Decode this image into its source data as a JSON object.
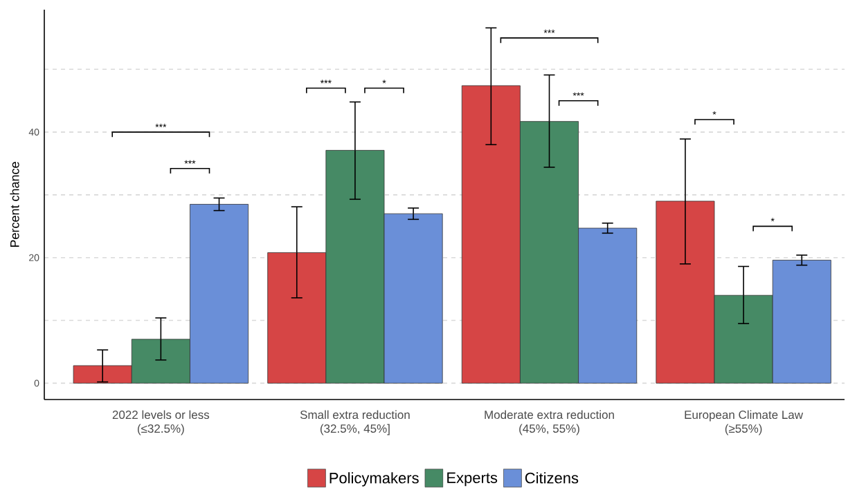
{
  "chart_data": {
    "type": "bar",
    "ylabel": "Percent chance",
    "categories": [
      "2022 levels or less\n(≤32.5%)",
      "Small extra reduction\n(32.5%, 45%]",
      "Moderate extra reduction\n(45%, 55%)",
      "European Climate Law\n(≥55%)"
    ],
    "series": [
      {
        "name": "Policymakers",
        "color": "#d64545",
        "values": [
          2.8,
          20.8,
          47.4,
          29.0
        ],
        "errors": [
          [
            0.2,
            5.3
          ],
          [
            13.6,
            28.1
          ],
          [
            38.0,
            56.6
          ],
          [
            19.0,
            38.9
          ]
        ]
      },
      {
        "name": "Experts",
        "color": "#468a65",
        "values": [
          7.0,
          37.1,
          41.7,
          14.0
        ],
        "errors": [
          [
            3.7,
            10.4
          ],
          [
            29.3,
            44.8
          ],
          [
            34.4,
            49.1
          ],
          [
            9.5,
            18.6
          ]
        ]
      },
      {
        "name": "Citizens",
        "color": "#6a8fd8",
        "values": [
          28.5,
          27.0,
          24.7,
          19.6
        ],
        "errors": [
          [
            27.5,
            29.5
          ],
          [
            26.1,
            27.9
          ],
          [
            23.9,
            25.5
          ],
          [
            18.8,
            20.4
          ]
        ]
      }
    ],
    "ylim": [
      -2.6,
      59.5
    ],
    "yticks": [
      0,
      {
        "value": 10,
        "label": null
      },
      20,
      {
        "value": 30,
        "label": null
      },
      40,
      {
        "value": 50,
        "label": null
      }
    ],
    "grid": "y",
    "legend": "bottom",
    "annotations": [
      "***",
      "***",
      "***",
      "*",
      "***",
      "***",
      "*",
      "*"
    ]
  }
}
